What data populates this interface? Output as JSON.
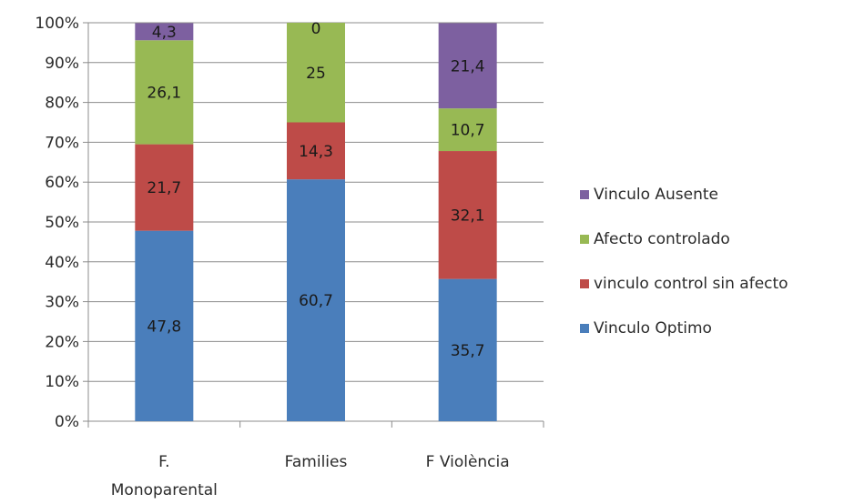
{
  "chart_data": {
    "type": "bar",
    "stacked": true,
    "percent_stacked": true,
    "categories": [
      [
        "F.",
        "Monoparental"
      ],
      [
        "Families"
      ],
      [
        "F Violència"
      ]
    ],
    "series": [
      {
        "name": "Vinculo Optimo",
        "color": "#4a7ebb",
        "values": [
          47.8,
          60.7,
          35.7
        ],
        "labels": [
          "47,8",
          "60,7",
          "35,7"
        ]
      },
      {
        "name": "vinculo control sin afecto",
        "color": "#be4b48",
        "values": [
          21.7,
          14.3,
          32.1
        ],
        "labels": [
          "21,7",
          "14,3",
          "32,1"
        ]
      },
      {
        "name": "Afecto controlado",
        "color": "#98b954",
        "values": [
          26.1,
          25,
          10.7
        ],
        "labels": [
          "26,1",
          "25",
          "10,7"
        ]
      },
      {
        "name": "Vinculo Ausente",
        "color": "#7d60a0",
        "values": [
          4.3,
          0,
          21.4
        ],
        "labels": [
          "4,3",
          "0",
          "21,4"
        ]
      }
    ],
    "yticks": [
      "0%",
      "10%",
      "20%",
      "30%",
      "40%",
      "50%",
      "60%",
      "70%",
      "80%",
      "90%",
      "100%"
    ],
    "ylim": [
      0,
      100
    ],
    "grid": true,
    "legend_position": "right",
    "legend_order": [
      "Vinculo Ausente",
      "Afecto controlado",
      "vinculo control sin afecto",
      "Vinculo Optimo"
    ],
    "title": "",
    "xlabel": "",
    "ylabel": ""
  }
}
